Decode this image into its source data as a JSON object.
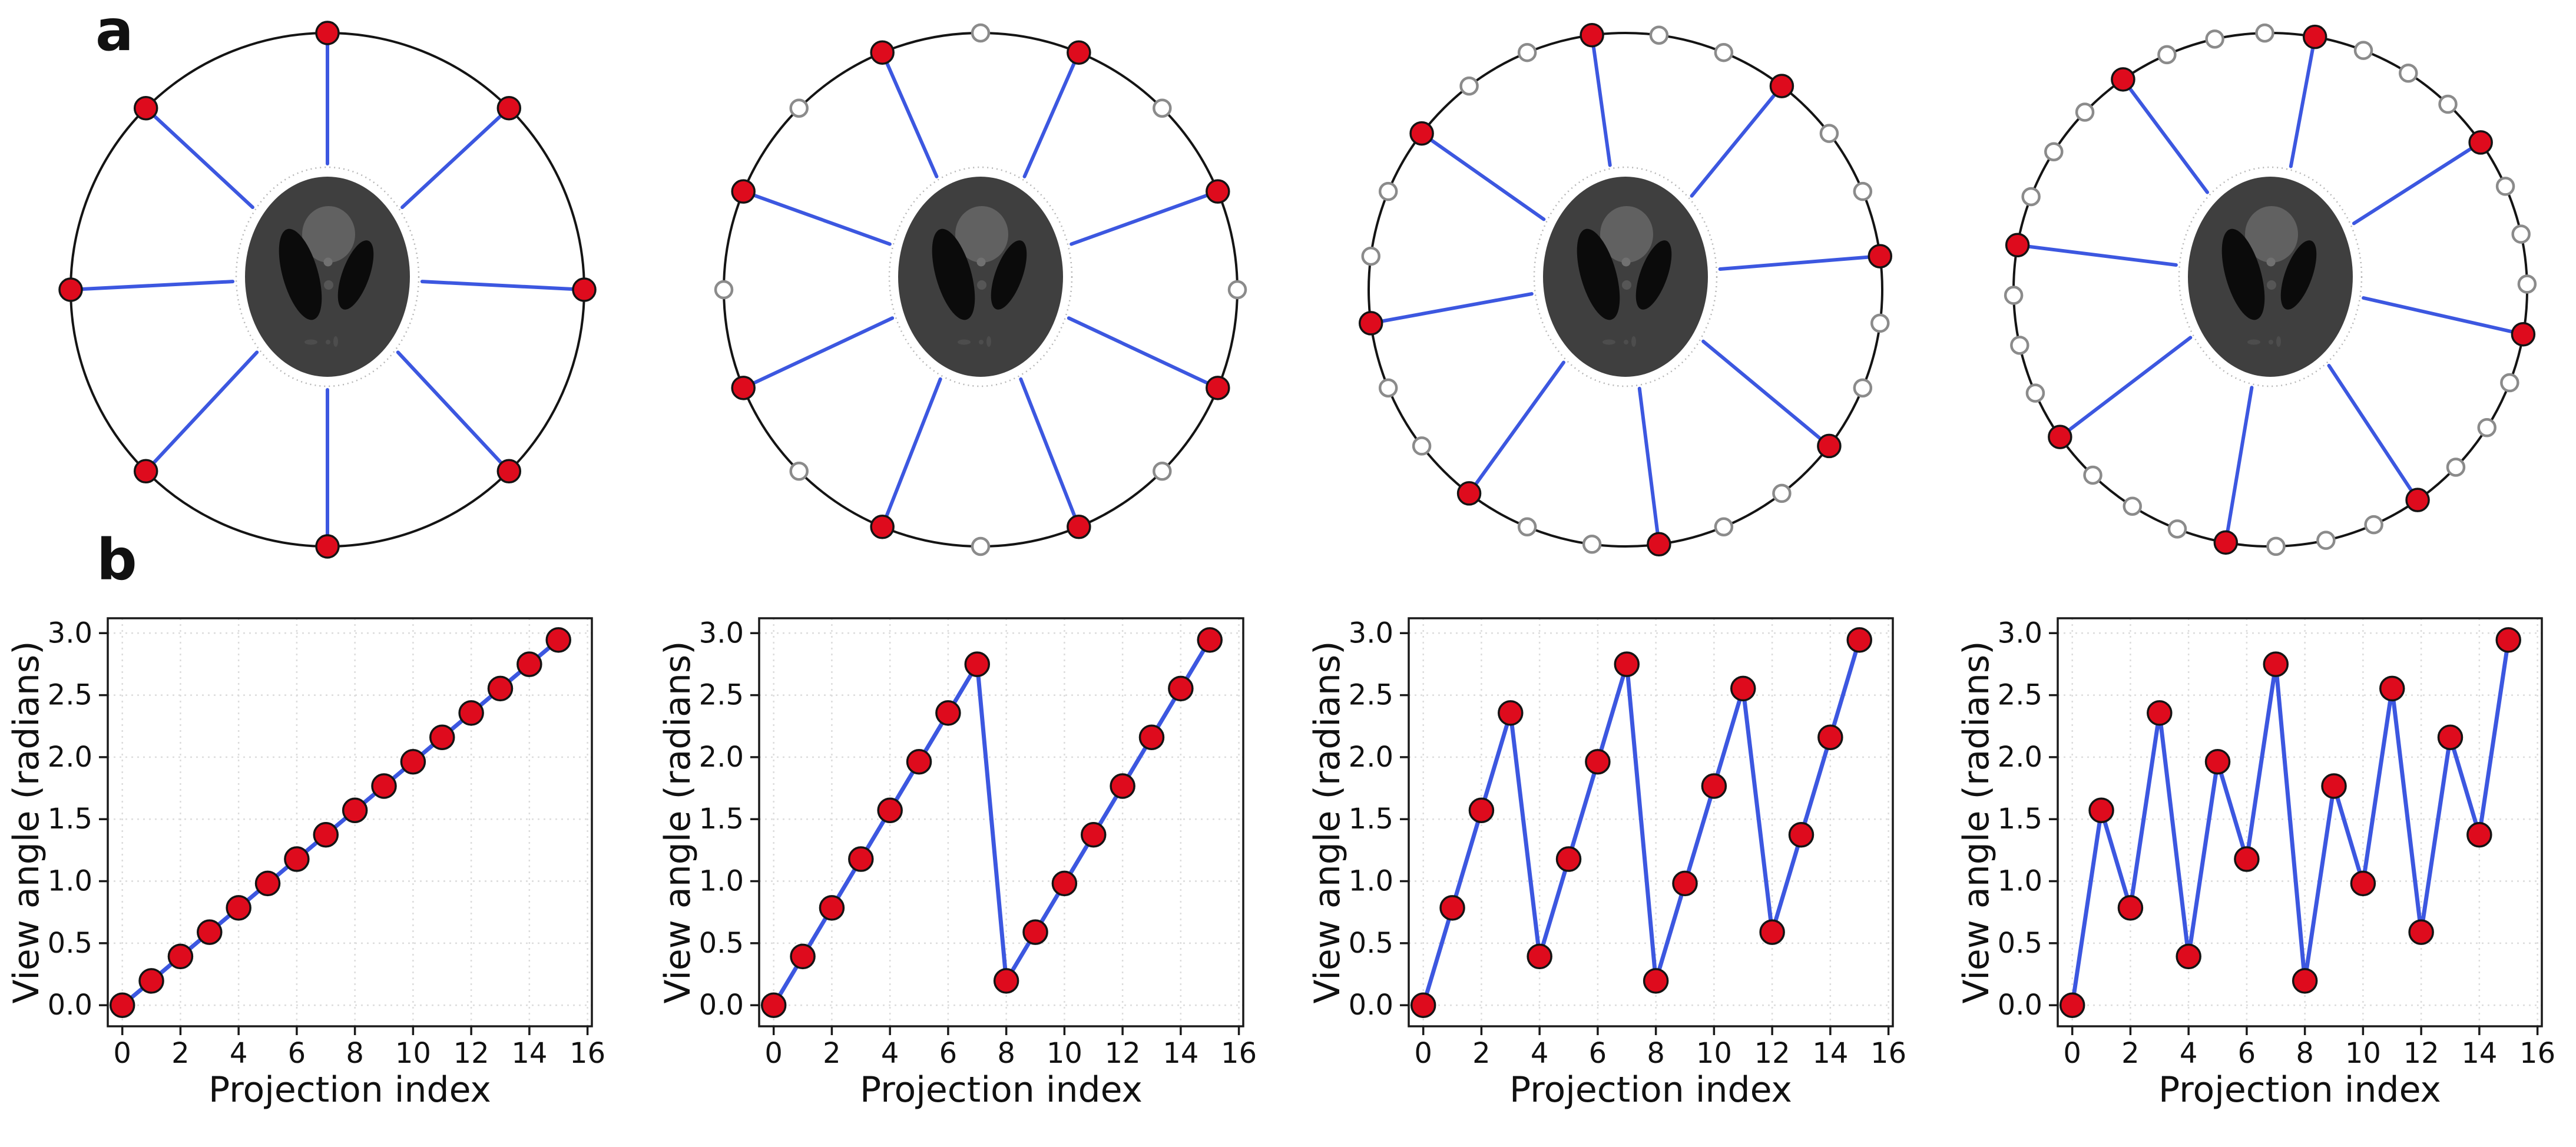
{
  "figure": {
    "panel_a_label": "a",
    "panel_b_label": "b"
  },
  "colors": {
    "background": "#ffffff",
    "sample_red": "#de0b1d",
    "marker_edge": "#141414",
    "trajectory_blue": "#3c57e0",
    "unsampled_gray": "#8b8b8b",
    "ring_black": "#141414",
    "axis_color": "#1a1a1a",
    "grid_color": "#dcdcdc",
    "phantom_body": "#3f3f3f",
    "phantom_inner_light": "#616161",
    "phantom_ventricle": "#0b0b0b",
    "phantom_dot_upper": "#717171",
    "phantom_dot_lower": "#565656",
    "phantom_bottom_marks": "#4d4d4d",
    "phantom_halo_edge": "#b5b5b5"
  },
  "sampling_circles": {
    "panels": [
      {
        "total_positions": 8,
        "start_angle_deg": 90,
        "sampled_indices": [
          0,
          1,
          2,
          3,
          4,
          5,
          6,
          7
        ],
        "sampled_count": 8,
        "unsampled_count": 0
      },
      {
        "total_positions": 16,
        "start_angle_deg": 0,
        "sampled_indices": [
          1,
          3,
          5,
          7,
          9,
          11,
          13,
          15
        ],
        "sampled_count": 8,
        "unsampled_count": 8
      },
      {
        "total_positions": 24,
        "start_angle_deg": 7.5,
        "sampled_indices": [
          0,
          3,
          6,
          9,
          12,
          15,
          18,
          21
        ],
        "sampled_count": 8,
        "unsampled_count": 16
      },
      {
        "total_positions": 32,
        "start_angle_deg": 1.25,
        "sampled_indices": [
          3,
          7,
          11,
          15,
          19,
          23,
          27,
          31
        ],
        "sampled_count": 8,
        "unsampled_count": 24
      }
    ]
  },
  "chart_data": [
    {
      "type": "line",
      "title": "",
      "xlabel": "Projection index",
      "ylabel": "View angle (radians)",
      "x": [
        0,
        1,
        2,
        3,
        4,
        5,
        6,
        7,
        8,
        9,
        10,
        11,
        12,
        13,
        14,
        15
      ],
      "y": [
        0.0,
        0.196,
        0.393,
        0.589,
        0.785,
        0.982,
        1.178,
        1.374,
        1.571,
        1.767,
        1.963,
        2.16,
        2.356,
        2.553,
        2.749,
        2.945
      ],
      "acquisition_order": [
        0,
        1,
        2,
        3,
        4,
        5,
        6,
        7,
        8,
        9,
        10,
        11,
        12,
        13,
        14,
        15
      ],
      "xticks": [
        0,
        2,
        4,
        6,
        8,
        10,
        12,
        14,
        16
      ],
      "xtick_labels": [
        "0",
        "2",
        "4",
        "6",
        "8",
        "10",
        "12",
        "14",
        "16"
      ],
      "yticks": [
        0.0,
        0.5,
        1.0,
        1.5,
        2.0,
        2.5,
        3.0
      ],
      "ytick_labels": [
        "0.0",
        "0.5",
        "1.0",
        "1.5",
        "2.0",
        "2.5",
        "3.0"
      ],
      "xlim": [
        -0.5,
        16.15
      ],
      "ylim": [
        -0.17,
        3.12
      ],
      "grid": true,
      "legend": null
    },
    {
      "type": "line",
      "title": "",
      "xlabel": "Projection index",
      "ylabel": "View angle (radians)",
      "x": [
        0,
        1,
        2,
        3,
        4,
        5,
        6,
        7,
        8,
        9,
        10,
        11,
        12,
        13,
        14,
        15
      ],
      "y": [
        0.0,
        0.393,
        0.785,
        1.178,
        1.571,
        1.963,
        2.356,
        2.749,
        0.196,
        0.589,
        0.982,
        1.374,
        1.767,
        2.16,
        2.553,
        2.945
      ],
      "acquisition_order": [
        0,
        2,
        4,
        6,
        8,
        10,
        12,
        14,
        1,
        3,
        5,
        7,
        9,
        11,
        13,
        15
      ],
      "xticks": [
        0,
        2,
        4,
        6,
        8,
        10,
        12,
        14,
        16
      ],
      "xtick_labels": [
        "0",
        "2",
        "4",
        "6",
        "8",
        "10",
        "12",
        "14",
        "16"
      ],
      "yticks": [
        0.0,
        0.5,
        1.0,
        1.5,
        2.0,
        2.5,
        3.0
      ],
      "ytick_labels": [
        "0.0",
        "0.5",
        "1.0",
        "1.5",
        "2.0",
        "2.5",
        "3.0"
      ],
      "xlim": [
        -0.5,
        16.15
      ],
      "ylim": [
        -0.17,
        3.12
      ],
      "grid": true,
      "legend": null
    },
    {
      "type": "line",
      "title": "",
      "xlabel": "Projection index",
      "ylabel": "View angle (radians)",
      "x": [
        0,
        1,
        2,
        3,
        4,
        5,
        6,
        7,
        8,
        9,
        10,
        11,
        12,
        13,
        14,
        15
      ],
      "y": [
        0.0,
        0.785,
        1.571,
        2.356,
        0.393,
        1.178,
        1.963,
        2.749,
        0.196,
        0.982,
        1.767,
        2.553,
        0.589,
        1.374,
        2.16,
        2.945
      ],
      "acquisition_order": [
        0,
        4,
        8,
        12,
        2,
        6,
        10,
        14,
        1,
        5,
        9,
        13,
        3,
        7,
        11,
        15
      ],
      "xticks": [
        0,
        2,
        4,
        6,
        8,
        10,
        12,
        14,
        16
      ],
      "xtick_labels": [
        "0",
        "2",
        "4",
        "6",
        "8",
        "10",
        "12",
        "14",
        "16"
      ],
      "yticks": [
        0.0,
        0.5,
        1.0,
        1.5,
        2.0,
        2.5,
        3.0
      ],
      "ytick_labels": [
        "0.0",
        "0.5",
        "1.0",
        "1.5",
        "2.0",
        "2.5",
        "3.0"
      ],
      "xlim": [
        -0.5,
        16.15
      ],
      "ylim": [
        -0.17,
        3.12
      ],
      "grid": true,
      "legend": null
    },
    {
      "type": "line",
      "title": "",
      "xlabel": "Projection index",
      "ylabel": "View angle (radians)",
      "x": [
        0,
        1,
        2,
        3,
        4,
        5,
        6,
        7,
        8,
        9,
        10,
        11,
        12,
        13,
        14,
        15
      ],
      "y": [
        0.0,
        1.571,
        0.785,
        2.356,
        0.393,
        1.963,
        1.178,
        2.749,
        0.196,
        1.767,
        0.982,
        2.553,
        0.589,
        2.16,
        1.374,
        2.945
      ],
      "acquisition_order": [
        0,
        8,
        4,
        12,
        2,
        10,
        6,
        14,
        1,
        9,
        5,
        13,
        3,
        11,
        7,
        15
      ],
      "xticks": [
        0,
        2,
        4,
        6,
        8,
        10,
        12,
        14,
        16
      ],
      "xtick_labels": [
        "0",
        "2",
        "4",
        "6",
        "8",
        "10",
        "12",
        "14",
        "16"
      ],
      "yticks": [
        0.0,
        0.5,
        1.0,
        1.5,
        2.0,
        2.5,
        3.0
      ],
      "ytick_labels": [
        "0.0",
        "0.5",
        "1.0",
        "1.5",
        "2.0",
        "2.5",
        "3.0"
      ],
      "xlim": [
        -0.5,
        16.15
      ],
      "ylim": [
        -0.17,
        3.12
      ],
      "grid": true,
      "legend": null
    }
  ]
}
